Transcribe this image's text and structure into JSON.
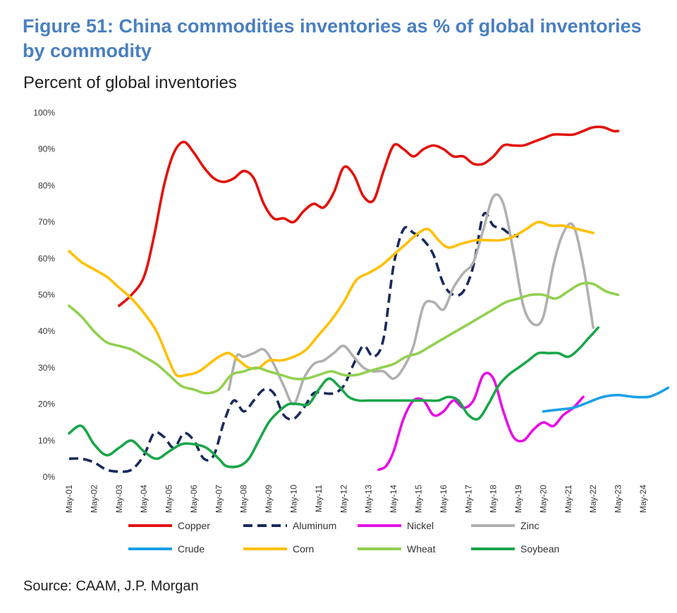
{
  "title": "Figure 51: China commodities inventories as % of global inventories by commodity",
  "subtitle": "Percent of global inventories",
  "source": "Source: CAAM, J.P. Morgan",
  "chart_data": {
    "type": "line",
    "ylabel": "Percent of global inventories",
    "ylim": [
      0,
      100
    ],
    "yticks": [
      "0%",
      "10%",
      "20%",
      "30%",
      "40%",
      "50%",
      "60%",
      "70%",
      "80%",
      "90%",
      "100%"
    ],
    "xticks": [
      "May-01",
      "May-02",
      "May-03",
      "May-04",
      "May-05",
      "May-06",
      "May-07",
      "May-08",
      "May-09",
      "May-10",
      "May-11",
      "May-12",
      "May-13",
      "May-14",
      "May-15",
      "May-16",
      "May-17",
      "May-18",
      "May-19",
      "May-20",
      "May-21",
      "May-22",
      "May-23",
      "May-24"
    ],
    "legend": [
      "Copper",
      "Aluminum",
      "Nickel",
      "Zinc",
      "Crude",
      "Corn",
      "Wheat",
      "Soybean"
    ],
    "series": [
      {
        "name": "Copper",
        "color": "#e3120b",
        "dash": false,
        "points": [
          [
            2.0,
            47
          ],
          [
            2.5,
            50
          ],
          [
            3.0,
            55
          ],
          [
            3.4,
            66
          ],
          [
            3.8,
            80
          ],
          [
            4.2,
            89
          ],
          [
            4.6,
            92
          ],
          [
            5.0,
            89
          ],
          [
            5.4,
            85
          ],
          [
            5.8,
            82
          ],
          [
            6.2,
            81
          ],
          [
            6.6,
            82
          ],
          [
            7.0,
            84
          ],
          [
            7.4,
            82
          ],
          [
            7.8,
            75
          ],
          [
            8.2,
            71
          ],
          [
            8.6,
            71
          ],
          [
            9.0,
            70
          ],
          [
            9.4,
            73
          ],
          [
            9.8,
            75
          ],
          [
            10.2,
            74
          ],
          [
            10.6,
            78
          ],
          [
            11.0,
            85
          ],
          [
            11.4,
            83
          ],
          [
            11.8,
            77
          ],
          [
            12.2,
            76
          ],
          [
            12.6,
            84
          ],
          [
            13.0,
            91
          ],
          [
            13.4,
            90
          ],
          [
            13.8,
            88
          ],
          [
            14.2,
            90
          ],
          [
            14.6,
            91
          ],
          [
            15.0,
            90
          ],
          [
            15.4,
            88
          ],
          [
            15.8,
            88
          ],
          [
            16.2,
            86
          ],
          [
            16.6,
            86
          ],
          [
            17.0,
            88
          ],
          [
            17.4,
            91
          ],
          [
            17.8,
            91
          ],
          [
            18.2,
            91
          ],
          [
            18.6,
            92
          ],
          [
            19.0,
            93
          ],
          [
            19.4,
            94
          ],
          [
            19.8,
            94
          ],
          [
            20.2,
            94
          ],
          [
            20.6,
            95
          ],
          [
            21.0,
            96
          ],
          [
            21.4,
            96
          ],
          [
            21.8,
            95
          ],
          [
            22.0,
            95
          ]
        ]
      },
      {
        "name": "Aluminum",
        "color": "#1a2a5c",
        "dash": true,
        "points": [
          [
            0.0,
            5
          ],
          [
            0.5,
            5
          ],
          [
            1.0,
            4
          ],
          [
            1.5,
            2
          ],
          [
            2.0,
            1.5
          ],
          [
            2.5,
            2
          ],
          [
            3.0,
            6
          ],
          [
            3.4,
            12
          ],
          [
            3.8,
            11
          ],
          [
            4.2,
            8
          ],
          [
            4.6,
            12
          ],
          [
            5.0,
            10
          ],
          [
            5.4,
            5
          ],
          [
            5.8,
            6
          ],
          [
            6.2,
            15
          ],
          [
            6.6,
            21
          ],
          [
            7.0,
            18
          ],
          [
            7.4,
            21
          ],
          [
            7.8,
            24
          ],
          [
            8.2,
            23
          ],
          [
            8.6,
            17
          ],
          [
            9.0,
            16
          ],
          [
            9.4,
            19
          ],
          [
            9.8,
            23
          ],
          [
            10.2,
            23
          ],
          [
            10.6,
            23
          ],
          [
            11.0,
            25
          ],
          [
            11.4,
            31
          ],
          [
            11.8,
            36
          ],
          [
            12.2,
            33
          ],
          [
            12.6,
            38
          ],
          [
            13.0,
            58
          ],
          [
            13.4,
            68
          ],
          [
            13.8,
            67
          ],
          [
            14.2,
            65
          ],
          [
            14.6,
            61
          ],
          [
            15.0,
            53
          ],
          [
            15.4,
            50
          ],
          [
            15.8,
            51
          ],
          [
            16.2,
            58
          ],
          [
            16.6,
            72
          ],
          [
            17.0,
            69
          ],
          [
            17.4,
            68
          ],
          [
            17.6,
            67
          ],
          [
            18.0,
            66
          ]
        ]
      },
      {
        "name": "Nickel",
        "color": "#e60ee6",
        "dash": false,
        "points": [
          [
            12.4,
            2
          ],
          [
            12.7,
            3
          ],
          [
            13.0,
            7
          ],
          [
            13.4,
            16
          ],
          [
            13.8,
            21
          ],
          [
            14.2,
            21
          ],
          [
            14.6,
            17
          ],
          [
            15.0,
            18
          ],
          [
            15.4,
            21
          ],
          [
            15.8,
            19
          ],
          [
            16.2,
            21
          ],
          [
            16.6,
            28
          ],
          [
            17.0,
            27
          ],
          [
            17.4,
            18
          ],
          [
            17.8,
            11
          ],
          [
            18.2,
            10
          ],
          [
            18.6,
            13
          ],
          [
            19.0,
            15
          ],
          [
            19.4,
            14
          ],
          [
            19.8,
            17
          ],
          [
            20.2,
            19
          ],
          [
            20.6,
            22
          ]
        ]
      },
      {
        "name": "Zinc",
        "color": "#b0b0b0",
        "dash": false,
        "points": [
          [
            6.4,
            24
          ],
          [
            6.7,
            33
          ],
          [
            7.0,
            33
          ],
          [
            7.4,
            34
          ],
          [
            7.8,
            35
          ],
          [
            8.2,
            31
          ],
          [
            8.6,
            25
          ],
          [
            9.0,
            20
          ],
          [
            9.4,
            27
          ],
          [
            9.8,
            31
          ],
          [
            10.2,
            32
          ],
          [
            10.6,
            34
          ],
          [
            11.0,
            36
          ],
          [
            11.4,
            33
          ],
          [
            11.8,
            30
          ],
          [
            12.2,
            29
          ],
          [
            12.6,
            29
          ],
          [
            13.0,
            27
          ],
          [
            13.4,
            30
          ],
          [
            13.8,
            36
          ],
          [
            14.2,
            47
          ],
          [
            14.6,
            48
          ],
          [
            15.0,
            46
          ],
          [
            15.4,
            52
          ],
          [
            15.8,
            56
          ],
          [
            16.2,
            59
          ],
          [
            16.6,
            68
          ],
          [
            17.0,
            77
          ],
          [
            17.4,
            75
          ],
          [
            17.8,
            62
          ],
          [
            18.2,
            47
          ],
          [
            18.6,
            42
          ],
          [
            19.0,
            44
          ],
          [
            19.4,
            58
          ],
          [
            19.8,
            67
          ],
          [
            20.2,
            69
          ],
          [
            20.6,
            58
          ],
          [
            21.0,
            41
          ]
        ]
      },
      {
        "name": "Crude",
        "color": "#1aa0e8",
        "dash": false,
        "points": [
          [
            19.0,
            18
          ],
          [
            19.6,
            18.5
          ],
          [
            20.2,
            19
          ],
          [
            20.8,
            20.5
          ],
          [
            21.4,
            22
          ],
          [
            22.0,
            22.5
          ],
          [
            22.6,
            22
          ],
          [
            23.2,
            22
          ],
          [
            23.6,
            23
          ],
          [
            24.0,
            24.5
          ]
        ]
      },
      {
        "name": "Corn",
        "color": "#ffc000",
        "dash": false,
        "points": [
          [
            0.0,
            62
          ],
          [
            0.5,
            59
          ],
          [
            1.0,
            57
          ],
          [
            1.5,
            55
          ],
          [
            2.0,
            52
          ],
          [
            2.5,
            49
          ],
          [
            3.0,
            45
          ],
          [
            3.5,
            40
          ],
          [
            4.0,
            32
          ],
          [
            4.3,
            28
          ],
          [
            4.7,
            28
          ],
          [
            5.2,
            29
          ],
          [
            5.6,
            31
          ],
          [
            6.0,
            33
          ],
          [
            6.4,
            34
          ],
          [
            6.8,
            32
          ],
          [
            7.2,
            30
          ],
          [
            7.6,
            30
          ],
          [
            8.0,
            32
          ],
          [
            8.5,
            32
          ],
          [
            9.0,
            33
          ],
          [
            9.5,
            35
          ],
          [
            10.0,
            39
          ],
          [
            10.5,
            43
          ],
          [
            11.0,
            48
          ],
          [
            11.5,
            54
          ],
          [
            12.0,
            56
          ],
          [
            12.5,
            58
          ],
          [
            13.0,
            61
          ],
          [
            13.5,
            64
          ],
          [
            14.0,
            67
          ],
          [
            14.4,
            68
          ],
          [
            14.8,
            65
          ],
          [
            15.2,
            63
          ],
          [
            15.7,
            64
          ],
          [
            16.3,
            65
          ],
          [
            16.8,
            65
          ],
          [
            17.3,
            65
          ],
          [
            17.8,
            66
          ],
          [
            18.3,
            68
          ],
          [
            18.8,
            70
          ],
          [
            19.3,
            69
          ],
          [
            19.8,
            69
          ],
          [
            20.4,
            68
          ],
          [
            21.0,
            67
          ]
        ]
      },
      {
        "name": "Wheat",
        "color": "#92d050",
        "dash": false,
        "points": [
          [
            0.0,
            47
          ],
          [
            0.5,
            44
          ],
          [
            1.0,
            40
          ],
          [
            1.5,
            37
          ],
          [
            2.0,
            36
          ],
          [
            2.5,
            35
          ],
          [
            3.0,
            33
          ],
          [
            3.5,
            31
          ],
          [
            4.0,
            28
          ],
          [
            4.5,
            25
          ],
          [
            5.0,
            24
          ],
          [
            5.5,
            23
          ],
          [
            6.0,
            24
          ],
          [
            6.5,
            28
          ],
          [
            7.0,
            29
          ],
          [
            7.5,
            30
          ],
          [
            8.0,
            29
          ],
          [
            8.5,
            28
          ],
          [
            9.0,
            27
          ],
          [
            9.5,
            27
          ],
          [
            10.0,
            28
          ],
          [
            10.5,
            29
          ],
          [
            11.0,
            28
          ],
          [
            11.5,
            28
          ],
          [
            12.0,
            29
          ],
          [
            12.5,
            30
          ],
          [
            13.0,
            31
          ],
          [
            13.5,
            33
          ],
          [
            14.0,
            34
          ],
          [
            14.5,
            36
          ],
          [
            15.0,
            38
          ],
          [
            15.5,
            40
          ],
          [
            16.0,
            42
          ],
          [
            16.5,
            44
          ],
          [
            17.0,
            46
          ],
          [
            17.5,
            48
          ],
          [
            18.0,
            49
          ],
          [
            18.5,
            50
          ],
          [
            19.0,
            50
          ],
          [
            19.5,
            49
          ],
          [
            20.0,
            51
          ],
          [
            20.5,
            53
          ],
          [
            21.0,
            53
          ],
          [
            21.5,
            51
          ],
          [
            22.0,
            50
          ]
        ]
      },
      {
        "name": "Soybean",
        "color": "#1aa64a",
        "dash": false,
        "points": [
          [
            0.0,
            12
          ],
          [
            0.5,
            14
          ],
          [
            1.0,
            9
          ],
          [
            1.5,
            6
          ],
          [
            2.0,
            8
          ],
          [
            2.5,
            10
          ],
          [
            3.0,
            7
          ],
          [
            3.5,
            5
          ],
          [
            4.0,
            7
          ],
          [
            4.5,
            9
          ],
          [
            5.0,
            9
          ],
          [
            5.5,
            8
          ],
          [
            6.0,
            5
          ],
          [
            6.3,
            3
          ],
          [
            6.8,
            3
          ],
          [
            7.2,
            5
          ],
          [
            7.6,
            10
          ],
          [
            8.0,
            15
          ],
          [
            8.4,
            18
          ],
          [
            8.8,
            20
          ],
          [
            9.2,
            20
          ],
          [
            9.6,
            20
          ],
          [
            10.0,
            24
          ],
          [
            10.4,
            27
          ],
          [
            10.8,
            25
          ],
          [
            11.2,
            22
          ],
          [
            11.6,
            21
          ],
          [
            12.0,
            21
          ],
          [
            12.6,
            21
          ],
          [
            13.2,
            21
          ],
          [
            13.8,
            21
          ],
          [
            14.4,
            21
          ],
          [
            14.8,
            21
          ],
          [
            15.2,
            22
          ],
          [
            15.6,
            21
          ],
          [
            16.0,
            17
          ],
          [
            16.4,
            16
          ],
          [
            16.8,
            20
          ],
          [
            17.2,
            25
          ],
          [
            17.6,
            28
          ],
          [
            18.0,
            30
          ],
          [
            18.4,
            32
          ],
          [
            18.8,
            34
          ],
          [
            19.2,
            34
          ],
          [
            19.6,
            34
          ],
          [
            20.0,
            33
          ],
          [
            20.4,
            35
          ],
          [
            20.8,
            38
          ],
          [
            21.2,
            41
          ]
        ]
      }
    ]
  }
}
